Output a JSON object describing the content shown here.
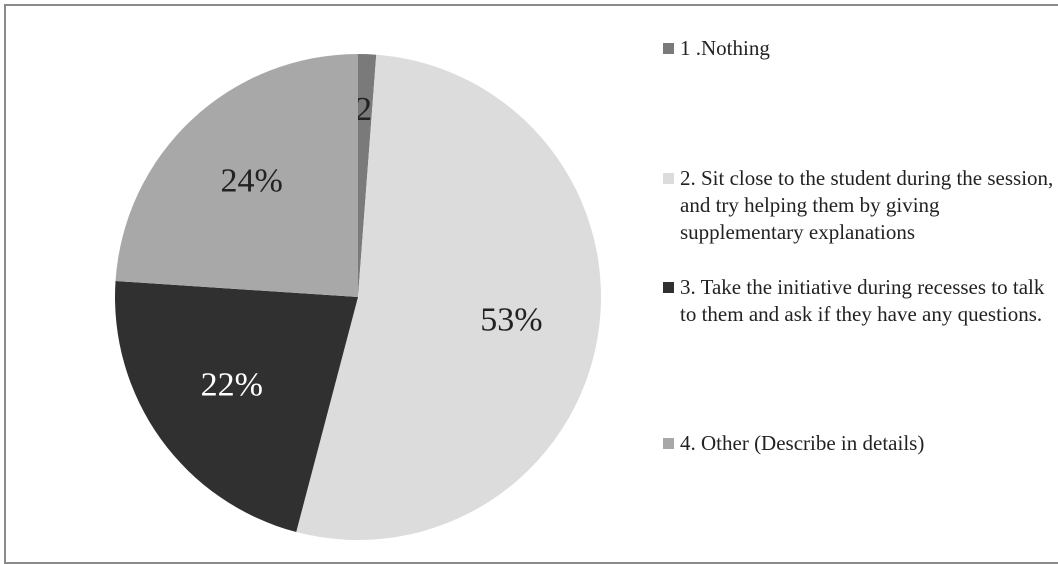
{
  "chart_data": {
    "type": "pie",
    "categories": [
      "1 .Nothing",
      "2. Sit close to the student during the session, and try helping them by giving supplementary explanations",
      "3. Take the initiative during recesses to talk to them and ask if they have any questions.",
      "4. Other (Describe in details)"
    ],
    "values": [
      1.2,
      53,
      22,
      24
    ],
    "value_labels": [
      "1.2%",
      "53%",
      "22%",
      "24%"
    ],
    "colors": [
      "#7a7a7a",
      "#dcdcdc",
      "#303030",
      "#a8a8a8"
    ]
  }
}
